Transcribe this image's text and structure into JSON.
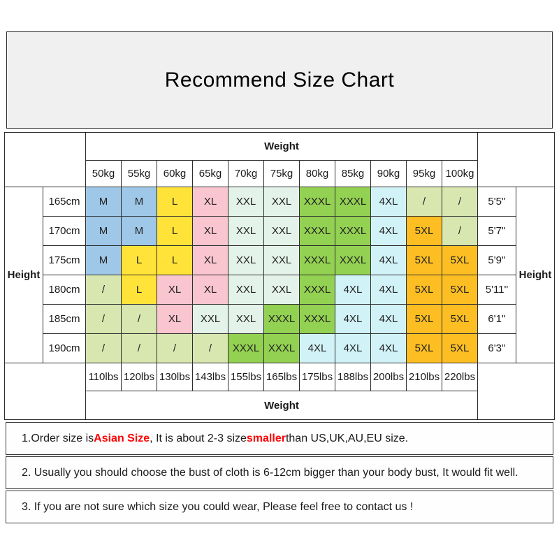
{
  "title": {
    "text": "Recommend Size Chart",
    "background": "#f0f0f0"
  },
  "table": {
    "weight_header": "Weight",
    "weight_footer": "Weight",
    "height_label_left": "Height",
    "height_label_right": "Height",
    "kg_columns": [
      "50kg",
      "55kg",
      "60kg",
      "65kg",
      "70kg",
      "75kg",
      "80kg",
      "85kg",
      "90kg",
      "95kg",
      "100kg"
    ],
    "lbs_columns": [
      "110lbs",
      "120lbs",
      "130lbs",
      "143lbs",
      "155lbs",
      "165lbs",
      "175lbs",
      "188lbs",
      "200lbs",
      "210lbs",
      "220lbs"
    ],
    "rows": [
      {
        "cm": "165cm",
        "ft": "5'5''",
        "sizes": [
          "M",
          "M",
          "L",
          "XL",
          "XXL",
          "XXL",
          "XXXL",
          "XXXL",
          "4XL",
          "/",
          "/"
        ]
      },
      {
        "cm": "170cm",
        "ft": "5'7''",
        "sizes": [
          "M",
          "M",
          "L",
          "XL",
          "XXL",
          "XXL",
          "XXXL",
          "XXXL",
          "4XL",
          "5XL",
          "/"
        ]
      },
      {
        "cm": "175cm",
        "ft": "5'9''",
        "sizes": [
          "M",
          "L",
          "L",
          "XL",
          "XXL",
          "XXL",
          "XXXL",
          "XXXL",
          "4XL",
          "5XL",
          "5XL"
        ]
      },
      {
        "cm": "180cm",
        "ft": "5'11''",
        "sizes": [
          "/",
          "L",
          "XL",
          "XL",
          "XXL",
          "XXL",
          "XXXL",
          "4XL",
          "4XL",
          "5XL",
          "5XL"
        ]
      },
      {
        "cm": "185cm",
        "ft": "6'1''",
        "sizes": [
          "/",
          "/",
          "XL",
          "XXL",
          "XXL",
          "XXXL",
          "XXXL",
          "4XL",
          "4XL",
          "5XL",
          "5XL"
        ]
      },
      {
        "cm": "190cm",
        "ft": "6'3''",
        "sizes": [
          "/",
          "/",
          "/",
          "/",
          "XXXL",
          "XXXL",
          "4XL",
          "4XL",
          "4XL",
          "5XL",
          "5XL"
        ]
      }
    ],
    "size_colors": {
      "M": "#9fc8e8",
      "L": "#ffe339",
      "XL": "#f9c5cf",
      "XXL": "#e4f3ea",
      "XXXL": "#93d152",
      "4XL": "#d1f2f7",
      "5XL": "#fcbe23",
      "/": "#d8e6b0"
    }
  },
  "notes": [
    {
      "segments": [
        {
          "text": "1.Order size is "
        },
        {
          "text": "Asian Size",
          "emphasis": true
        },
        {
          "text": ", It is about 2-3 size "
        },
        {
          "text": "smaller",
          "emphasis": true
        },
        {
          "text": " than US,UK,AU,EU size."
        }
      ]
    },
    {
      "segments": [
        {
          "text": "2. Usually you should choose the bust of cloth is 6-12cm bigger than your body bust, It would fit well."
        }
      ]
    },
    {
      "segments": [
        {
          "text": "3. If you are not sure which size you could wear, Please feel free to contact us !"
        }
      ]
    }
  ],
  "colors": {
    "emphasis_red": "#ff0000",
    "text": "#1a1a1a",
    "border": "#2e2e2e",
    "title_background": "#f0f0f0"
  }
}
